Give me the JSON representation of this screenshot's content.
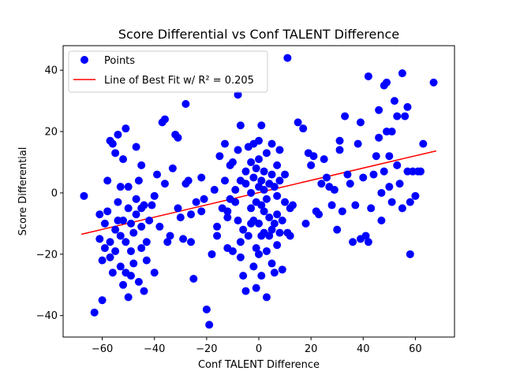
{
  "chart_data": {
    "type": "scatter",
    "title": "Score Differential vs Conf TALENT Difference",
    "xlabel": "Conf TALENT Difference",
    "ylabel": "Score Differential",
    "xlim": [
      -75,
      75
    ],
    "ylim": [
      -47,
      48
    ],
    "xticks": [
      -60,
      -40,
      -20,
      0,
      20,
      40,
      60
    ],
    "yticks": [
      -40,
      -20,
      0,
      20,
      40
    ],
    "grid": false,
    "legend_position": "upper-left",
    "colors": {
      "points": "#0000ff",
      "fit_line": "#ff0000"
    },
    "series": [
      {
        "name": "Points",
        "type": "scatter",
        "points": [
          [
            -67,
            -1
          ],
          [
            -63,
            -39
          ],
          [
            -61,
            -15
          ],
          [
            -61,
            -7
          ],
          [
            -60,
            -35
          ],
          [
            -60,
            -22
          ],
          [
            -59,
            -18
          ],
          [
            -59,
            -10
          ],
          [
            -58,
            4
          ],
          [
            -58,
            -6
          ],
          [
            -57,
            17
          ],
          [
            -57,
            -16
          ],
          [
            -57,
            -21
          ],
          [
            -56,
            -26
          ],
          [
            -56,
            16
          ],
          [
            -55,
            -12
          ],
          [
            -55,
            -19
          ],
          [
            -55,
            13
          ],
          [
            -54,
            -9
          ],
          [
            -54,
            -3
          ],
          [
            -54,
            19
          ],
          [
            -53,
            2
          ],
          [
            -53,
            -24
          ],
          [
            -53,
            -14
          ],
          [
            -52,
            -30
          ],
          [
            -52,
            -9
          ],
          [
            -52,
            11
          ],
          [
            -51,
            21
          ],
          [
            -51,
            -26
          ],
          [
            -51,
            -16
          ],
          [
            -50,
            -34
          ],
          [
            -50,
            -5
          ],
          [
            -50,
            2
          ],
          [
            -49,
            -27
          ],
          [
            -49,
            -19
          ],
          [
            -49,
            -10
          ],
          [
            -48,
            -23
          ],
          [
            -48,
            -13
          ],
          [
            -47,
            -2
          ],
          [
            -47,
            15
          ],
          [
            -47,
            -7
          ],
          [
            -46,
            -29
          ],
          [
            -46,
            4
          ],
          [
            -45,
            -5
          ],
          [
            -45,
            9
          ],
          [
            -45,
            -18
          ],
          [
            -45,
            -11
          ],
          [
            -44,
            -32
          ],
          [
            -44,
            -4
          ],
          [
            -43,
            -22
          ],
          [
            -43,
            -16
          ],
          [
            -42,
            -9
          ],
          [
            -41,
            -4
          ],
          [
            -40,
            -1
          ],
          [
            -40,
            -26
          ],
          [
            -39,
            6
          ],
          [
            -38,
            -11
          ],
          [
            -37,
            23
          ],
          [
            -36,
            24
          ],
          [
            -36,
            3
          ],
          [
            -35,
            -16
          ],
          [
            -34,
            -14
          ],
          [
            -33,
            8
          ],
          [
            -32,
            19
          ],
          [
            -31,
            18
          ],
          [
            -31,
            -5
          ],
          [
            -30,
            -8
          ],
          [
            -29,
            -15
          ],
          [
            -28,
            29
          ],
          [
            -28,
            3
          ],
          [
            -27,
            4
          ],
          [
            -26,
            -16
          ],
          [
            -26,
            -7
          ],
          [
            -25,
            -28
          ],
          [
            -24,
            -3
          ],
          [
            -22,
            -6
          ],
          [
            -22,
            5
          ],
          [
            -21,
            -2
          ],
          [
            -20,
            -38
          ],
          [
            -19,
            -43
          ],
          [
            -18,
            -20
          ],
          [
            -17,
            1
          ],
          [
            -16,
            -14
          ],
          [
            -16,
            -11
          ],
          [
            -15,
            12
          ],
          [
            -14,
            -5
          ],
          [
            -13,
            16
          ],
          [
            -13,
            4
          ],
          [
            -12,
            -18
          ],
          [
            -12,
            -8
          ],
          [
            -12,
            -6
          ],
          [
            -11,
            -2
          ],
          [
            -11,
            9
          ],
          [
            -10,
            -19
          ],
          [
            -10,
            10
          ],
          [
            -9,
            -3
          ],
          [
            -9,
            1
          ],
          [
            -8,
            32
          ],
          [
            -8,
            14
          ],
          [
            -8,
            -9
          ],
          [
            -7,
            22
          ],
          [
            -7,
            -16
          ],
          [
            -7,
            -21
          ],
          [
            -7,
            4
          ],
          [
            -6,
            -12
          ],
          [
            -6,
            -27
          ],
          [
            -5,
            -32
          ],
          [
            -5,
            3
          ],
          [
            -5,
            7
          ],
          [
            -4,
            -14
          ],
          [
            -4,
            15
          ],
          [
            -3,
            -10
          ],
          [
            -3,
            10
          ],
          [
            -3,
            -5
          ],
          [
            -3,
            0
          ],
          [
            -2,
            -24
          ],
          [
            -2,
            -9
          ],
          [
            -2,
            5
          ],
          [
            -2,
            16
          ],
          [
            -1,
            -18
          ],
          [
            -1,
            -31
          ],
          [
            -1,
            -3
          ],
          [
            -1,
            8
          ],
          [
            0,
            -20
          ],
          [
            0,
            -10
          ],
          [
            0,
            2
          ],
          [
            0,
            11
          ],
          [
            0,
            17
          ],
          [
            1,
            -27
          ],
          [
            1,
            -14
          ],
          [
            1,
            -4
          ],
          [
            1,
            4
          ],
          [
            1,
            22
          ],
          [
            2,
            -13
          ],
          [
            2,
            -6
          ],
          [
            2,
            1
          ],
          [
            2,
            7
          ],
          [
            3,
            -19
          ],
          [
            3,
            -2
          ],
          [
            3,
            13
          ],
          [
            3,
            -34
          ],
          [
            4,
            -8
          ],
          [
            4,
            -14
          ],
          [
            4,
            3
          ],
          [
            5,
            -23
          ],
          [
            5,
            -12
          ],
          [
            5,
            6
          ],
          [
            5,
            16
          ],
          [
            6,
            -26
          ],
          [
            6,
            -10
          ],
          [
            6,
            2
          ],
          [
            7,
            -17
          ],
          [
            7,
            -7
          ],
          [
            7,
            -1
          ],
          [
            7,
            9
          ],
          [
            8,
            -13
          ],
          [
            8,
            4
          ],
          [
            8,
            14
          ],
          [
            9,
            -25
          ],
          [
            9,
            -9
          ],
          [
            10,
            -3
          ],
          [
            10,
            6
          ],
          [
            11,
            44
          ],
          [
            11,
            -13
          ],
          [
            12,
            -14
          ],
          [
            12,
            -5
          ],
          [
            13,
            -4
          ],
          [
            15,
            23
          ],
          [
            17,
            21
          ],
          [
            18,
            -10
          ],
          [
            19,
            13
          ],
          [
            20,
            9
          ],
          [
            21,
            12
          ],
          [
            22,
            -6
          ],
          [
            23,
            -7
          ],
          [
            24,
            3
          ],
          [
            25,
            11
          ],
          [
            26,
            5
          ],
          [
            27,
            2
          ],
          [
            28,
            -4
          ],
          [
            29,
            1
          ],
          [
            30,
            -12
          ],
          [
            31,
            17
          ],
          [
            31,
            14
          ],
          [
            32,
            -6
          ],
          [
            33,
            25
          ],
          [
            34,
            6
          ],
          [
            35,
            3
          ],
          [
            36,
            -16
          ],
          [
            37,
            -4
          ],
          [
            38,
            16
          ],
          [
            39,
            23
          ],
          [
            39,
            -15
          ],
          [
            40,
            5
          ],
          [
            41,
            -14
          ],
          [
            42,
            -16
          ],
          [
            42,
            38
          ],
          [
            43,
            -5
          ],
          [
            44,
            6
          ],
          [
            45,
            12
          ],
          [
            46,
            18
          ],
          [
            46,
            27
          ],
          [
            47,
            -9
          ],
          [
            47,
            0
          ],
          [
            48,
            35
          ],
          [
            48,
            7
          ],
          [
            49,
            20
          ],
          [
            49,
            36
          ],
          [
            50,
            2
          ],
          [
            50,
            12
          ],
          [
            51,
            -3
          ],
          [
            51,
            20
          ],
          [
            52,
            30
          ],
          [
            53,
            25
          ],
          [
            53,
            9
          ],
          [
            54,
            3
          ],
          [
            55,
            -5
          ],
          [
            55,
            39
          ],
          [
            56,
            25
          ],
          [
            57,
            7
          ],
          [
            57,
            28
          ],
          [
            58,
            -20
          ],
          [
            58,
            -3
          ],
          [
            59,
            7
          ],
          [
            60,
            -1
          ],
          [
            61,
            7
          ],
          [
            62,
            7
          ],
          [
            63,
            16
          ],
          [
            67,
            36
          ]
        ]
      },
      {
        "name": "Line of Best Fit w/ R² = 0.205",
        "type": "line",
        "x": [
          -68,
          68
        ],
        "y": [
          -13.5,
          13.7
        ]
      }
    ]
  }
}
